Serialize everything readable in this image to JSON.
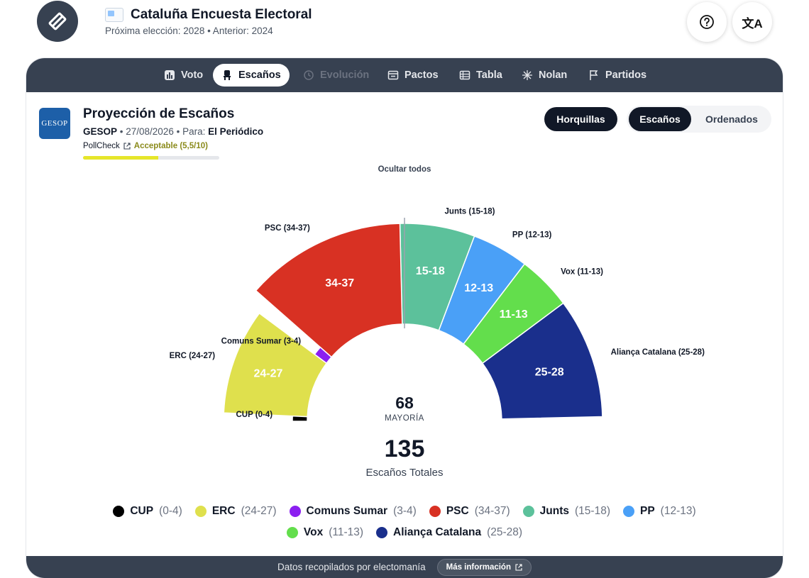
{
  "header": {
    "title": "Cataluña Encuesta Electoral",
    "subtitle": "Próxima elección: 2028 • Anterior: 2024",
    "help_icon": "question-circle-icon",
    "lang_icon": "translate-icon"
  },
  "tabs": [
    {
      "label": "Voto",
      "icon": "bar-chart-icon",
      "state": "normal"
    },
    {
      "label": "Escaños",
      "icon": "chair-icon",
      "state": "active"
    },
    {
      "label": "Evolución",
      "icon": "history-icon",
      "state": "disabled"
    },
    {
      "label": "Pactos",
      "icon": "pact-icon",
      "state": "normal"
    },
    {
      "label": "Tabla",
      "icon": "table-icon",
      "state": "normal"
    },
    {
      "label": "Nolan",
      "icon": "grid-icon",
      "state": "normal"
    },
    {
      "label": "Partidos",
      "icon": "flag-icon",
      "state": "normal"
    }
  ],
  "poll": {
    "pollster_logo_text": "GESOP",
    "title": "Proyección de Escaños",
    "pollster": "GESOP",
    "date": "27/08/2026",
    "for_label": "Para:",
    "client": "El Periódico",
    "pollcheck_label": "PollCheck",
    "pollcheck_rating": "Acceptable (5,5/10)",
    "pollcheck_score": 0.55
  },
  "controls": {
    "horquillas": "Horquillas",
    "escanos": "Escaños",
    "ordenados": "Ordenados",
    "hide_all": "Ocultar todos"
  },
  "chart_data": {
    "type": "hemicycle",
    "total_seats": 135,
    "majority": 68,
    "majority_label": "MAYORÍA",
    "total_label": "Escaños Totales",
    "series": [
      {
        "name": "CUP",
        "min": 0,
        "max": 4,
        "range": "0-4",
        "color": "#000000"
      },
      {
        "name": "ERC",
        "min": 24,
        "max": 27,
        "range": "24-27",
        "color": "#dfe04d"
      },
      {
        "name": "Comuns Sumar",
        "min": 3,
        "max": 4,
        "range": "3-4",
        "color": "#8b1ff0"
      },
      {
        "name": "PSC",
        "min": 34,
        "max": 37,
        "range": "34-37",
        "color": "#d83123"
      },
      {
        "name": "Junts",
        "min": 15,
        "max": 18,
        "range": "15-18",
        "color": "#5cc19b"
      },
      {
        "name": "PP",
        "min": 12,
        "max": 13,
        "range": "12-13",
        "color": "#4aa0f7"
      },
      {
        "name": "Vox",
        "min": 11,
        "max": 13,
        "range": "11-13",
        "color": "#63de4c"
      },
      {
        "name": "Aliança Catalana",
        "min": 25,
        "max": 28,
        "range": "25-28",
        "color": "#1a2f8c"
      }
    ]
  },
  "footer": {
    "text": "Datos recopilados por electomanía",
    "button": "Más información"
  }
}
